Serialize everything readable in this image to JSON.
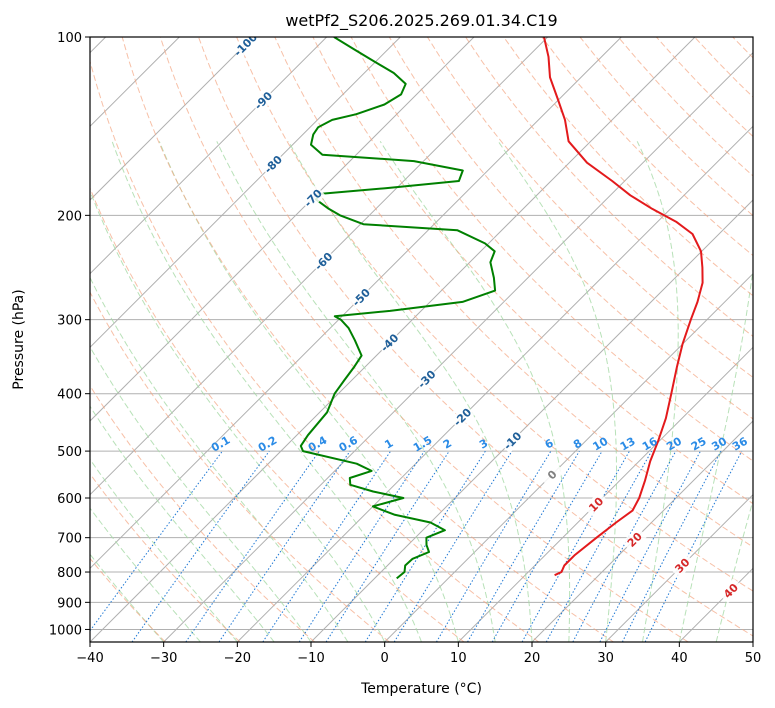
{
  "chart_data": {
    "type": "line",
    "title": "wetPf2_S206.2025.269.01.34.C19",
    "xlabel": "Temperature (°C)",
    "ylabel": "Pressure (hPa)",
    "xlim": [
      -40,
      50
    ],
    "ylim": [
      1050,
      100
    ],
    "x_ticks": [
      -40,
      -30,
      -20,
      -10,
      0,
      10,
      20,
      30,
      40,
      50
    ],
    "x_tick_labels": [
      "−40",
      "−30",
      "−20",
      "−10",
      "0",
      "10",
      "20",
      "30",
      "40",
      "50"
    ],
    "y_ticks": [
      100,
      200,
      300,
      400,
      500,
      600,
      700,
      800,
      900,
      1000
    ],
    "y_tick_labels": [
      "100",
      "200",
      "300",
      "400",
      "500",
      "600",
      "700",
      "800",
      "900",
      "1000"
    ],
    "y_scale": "log",
    "skew_degrees": 45,
    "isotherm_labels": {
      "values": [
        -100,
        -90,
        -80,
        -70,
        -60,
        -50,
        -40,
        -30,
        -20,
        -10,
        0,
        10,
        20,
        30,
        40
      ],
      "labels": [
        "-100",
        "-90",
        "-80",
        "-70",
        "-60",
        "-50",
        "-40",
        "-30",
        "-20",
        "-10",
        "0",
        "10",
        "20",
        "30",
        "40"
      ],
      "pressures": [
        103,
        128,
        164,
        187,
        239,
        275,
        328,
        378,
        438,
        480,
        548,
        615,
        705,
        780,
        860
      ]
    },
    "mixing_ratio_labels": {
      "values": [
        0.1,
        0.2,
        0.4,
        0.6,
        1,
        1.5,
        2,
        3,
        4,
        6,
        8,
        10,
        13,
        16,
        20,
        25,
        30,
        36
      ],
      "labels": [
        "0.1",
        "0.2",
        "0.4",
        "0.6",
        "1",
        "1.5",
        "2",
        "3",
        "4",
        "6",
        "8",
        "10",
        "13",
        "16",
        "20",
        "25",
        "30",
        "36"
      ],
      "label_pressure": 500
    },
    "dry_adiabat_thetas_K": [
      210,
      220,
      230,
      240,
      250,
      260,
      270,
      280,
      290,
      300,
      310,
      320,
      330,
      340,
      350,
      360,
      370,
      380,
      390,
      400,
      410,
      420,
      430,
      440,
      450,
      460,
      470,
      480,
      490,
      500,
      520,
      540,
      560,
      580
    ],
    "moist_adiabat_start_temps_C": [
      -30,
      -25,
      -20,
      -15,
      -10,
      -5,
      0,
      5,
      10,
      15,
      20,
      25,
      30,
      35,
      40,
      45
    ],
    "series": [
      {
        "name": "Temperature",
        "color": "#e31a1c",
        "points": [
          [
            810,
            14.0
          ],
          [
            800,
            14.5
          ],
          [
            780,
            14.0
          ],
          [
            750,
            14.0
          ],
          [
            700,
            14.6
          ],
          [
            660,
            15.2
          ],
          [
            630,
            15.8
          ],
          [
            600,
            15.0
          ],
          [
            560,
            13.4
          ],
          [
            520,
            11.5
          ],
          [
            480,
            9.8
          ],
          [
            440,
            7.8
          ],
          [
            400,
            5.2
          ],
          [
            360,
            2.3
          ],
          [
            330,
            0.0
          ],
          [
            300,
            -2.2
          ],
          [
            280,
            -3.7
          ],
          [
            260,
            -5.6
          ],
          [
            245,
            -7.7
          ],
          [
            230,
            -10.1
          ],
          [
            215,
            -13.6
          ],
          [
            205,
            -17.5
          ],
          [
            195,
            -22.5
          ],
          [
            185,
            -27.3
          ],
          [
            175,
            -31.7
          ],
          [
            163,
            -37.6
          ],
          [
            150,
            -43.0
          ],
          [
            138,
            -46.4
          ],
          [
            127,
            -50.3
          ],
          [
            117,
            -54.2
          ],
          [
            108,
            -57.2
          ],
          [
            100,
            -60.5
          ]
        ]
      },
      {
        "name": "Dewpoint",
        "color": "#008000",
        "points": [
          [
            820,
            -7.0
          ],
          [
            800,
            -6.8
          ],
          [
            780,
            -7.6
          ],
          [
            760,
            -7.5
          ],
          [
            740,
            -6.2
          ],
          [
            720,
            -7.5
          ],
          [
            700,
            -8.5
          ],
          [
            680,
            -7.0
          ],
          [
            660,
            -10.0
          ],
          [
            640,
            -16.0
          ],
          [
            620,
            -20.0
          ],
          [
            600,
            -17.0
          ],
          [
            585,
            -22.0
          ],
          [
            570,
            -26.0
          ],
          [
            555,
            -27.0
          ],
          [
            540,
            -25.0
          ],
          [
            525,
            -28.0
          ],
          [
            500,
            -37.0
          ],
          [
            490,
            -38.0
          ],
          [
            470,
            -38.5
          ],
          [
            430,
            -39.0
          ],
          [
            400,
            -40.5
          ],
          [
            380,
            -41.0
          ],
          [
            360,
            -41.5
          ],
          [
            345,
            -42.0
          ],
          [
            325,
            -45.0
          ],
          [
            310,
            -47.5
          ],
          [
            300,
            -49.7
          ],
          [
            296,
            -51.0
          ],
          [
            290,
            -44.2
          ],
          [
            280,
            -35.6
          ],
          [
            268,
            -32.7
          ],
          [
            255,
            -34.6
          ],
          [
            240,
            -37.2
          ],
          [
            230,
            -38.1
          ],
          [
            223,
            -40.5
          ],
          [
            212,
            -46.0
          ],
          [
            207,
            -59.6
          ],
          [
            200,
            -64.0
          ],
          [
            195,
            -66.4
          ],
          [
            188,
            -69.4
          ],
          [
            184,
            -69.6
          ],
          [
            180,
            -61.5
          ],
          [
            175,
            -52.5
          ],
          [
            168,
            -53.4
          ],
          [
            162,
            -61.3
          ],
          [
            158,
            -74.6
          ],
          [
            152,
            -77.5
          ],
          [
            146,
            -78.6
          ],
          [
            142,
            -78.9
          ],
          [
            138,
            -78.0
          ],
          [
            135,
            -75.5
          ],
          [
            130,
            -73.0
          ],
          [
            125,
            -72.1
          ],
          [
            120,
            -72.9
          ],
          [
            115,
            -76.0
          ],
          [
            110,
            -80.2
          ],
          [
            105,
            -84.5
          ],
          [
            100,
            -89.0
          ]
        ]
      }
    ]
  }
}
